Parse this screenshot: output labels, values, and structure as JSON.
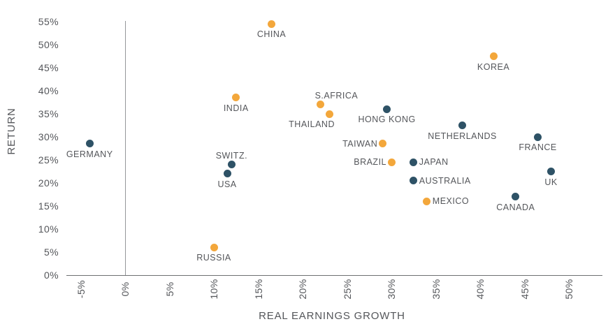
{
  "chart_data": {
    "type": "scatter",
    "title": "",
    "xlabel": "REAL EARNINGS GROWTH",
    "ylabel": "RETURN",
    "grid": "off",
    "legend": "none",
    "xlim": [
      -6.5,
      54
    ],
    "ylim": [
      0,
      55
    ],
    "x_tick_values": [
      -5,
      0,
      5,
      10,
      15,
      20,
      25,
      30,
      35,
      40,
      45,
      50
    ],
    "x_tick_labels": [
      "-5%",
      "0%",
      "5%",
      "10%",
      "15%",
      "20%",
      "25%",
      "30%",
      "35%",
      "40%",
      "45%",
      "50%"
    ],
    "y_tick_values": [
      0,
      5,
      10,
      15,
      20,
      25,
      30,
      35,
      40,
      45,
      50,
      55
    ],
    "y_tick_labels": [
      "0%",
      "5%",
      "10%",
      "15%",
      "20%",
      "25%",
      "30%",
      "35%",
      "40%",
      "45%",
      "50%",
      "55%"
    ],
    "colors": {
      "orange": "#f3a73b",
      "blue": "#2e5266"
    },
    "points": [
      {
        "label": "CHINA",
        "x": 16.5,
        "y": 54.5,
        "color": "orange",
        "label_pos": "below",
        "label_dx": 0
      },
      {
        "label": "KOREA",
        "x": 41.5,
        "y": 47.5,
        "color": "orange",
        "label_pos": "below",
        "label_dx": 0
      },
      {
        "label": "INDIA",
        "x": 12.5,
        "y": 38.5,
        "color": "orange",
        "label_pos": "below",
        "label_dx": 0
      },
      {
        "label": "S.AFRICA",
        "x": 22,
        "y": 37,
        "color": "orange",
        "label_pos": "above",
        "label_dx": 23
      },
      {
        "label": "HONG KONG",
        "x": 29.5,
        "y": 36,
        "color": "blue",
        "label_pos": "below",
        "label_dx": 0
      },
      {
        "label": "THAILAND",
        "x": 23,
        "y": 35,
        "color": "orange",
        "label_pos": "below",
        "label_dx": -25
      },
      {
        "label": "NETHERLANDS",
        "x": 38,
        "y": 32.5,
        "color": "blue",
        "label_pos": "below",
        "label_dx": 0
      },
      {
        "label": "FRANCE",
        "x": 46.5,
        "y": 30,
        "color": "blue",
        "label_pos": "below",
        "label_dx": 0
      },
      {
        "label": "GERMANY",
        "x": -4,
        "y": 28.5,
        "color": "blue",
        "label_pos": "below",
        "label_dx": 0
      },
      {
        "label": "TAIWAN",
        "x": 29,
        "y": 28.5,
        "color": "orange",
        "label_pos": "left",
        "label_dx": 0
      },
      {
        "label": "BRAZIL",
        "x": 30,
        "y": 24.5,
        "color": "orange",
        "label_pos": "left",
        "label_dx": 0
      },
      {
        "label": "JAPAN",
        "x": 32.5,
        "y": 24.5,
        "color": "blue",
        "label_pos": "right",
        "label_dx": 0
      },
      {
        "label": "SWITZ.",
        "x": 12,
        "y": 24,
        "color": "blue",
        "label_pos": "above",
        "label_dx": 0
      },
      {
        "label": "USA",
        "x": 11.5,
        "y": 22,
        "color": "blue",
        "label_pos": "below",
        "label_dx": 0
      },
      {
        "label": "UK",
        "x": 48,
        "y": 22.5,
        "color": "blue",
        "label_pos": "below",
        "label_dx": 0
      },
      {
        "label": "AUSTRALIA",
        "x": 32.5,
        "y": 20.5,
        "color": "blue",
        "label_pos": "right",
        "label_dx": 0
      },
      {
        "label": "MEXICO",
        "x": 34,
        "y": 16,
        "color": "orange",
        "label_pos": "right",
        "label_dx": 0
      },
      {
        "label": "CANADA",
        "x": 44,
        "y": 17,
        "color": "blue",
        "label_pos": "below",
        "label_dx": 0
      },
      {
        "label": "RUSSIA",
        "x": 10,
        "y": 6,
        "color": "orange",
        "label_pos": "below",
        "label_dx": 0
      }
    ]
  }
}
